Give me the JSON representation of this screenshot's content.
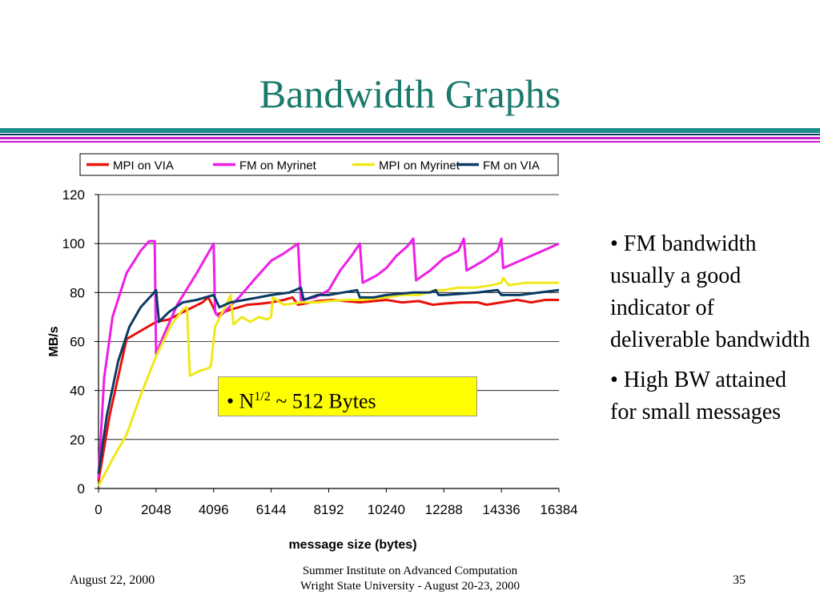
{
  "slide": {
    "title": "Bandwidth Graphs",
    "bullets": [
      "• FM bandwidth usually a good indicator of deliverable bandwidth",
      "• High BW attained for small messages"
    ],
    "callout": {
      "prefix": "• N",
      "sup": "1/2",
      "suffix": " ~ 512 Bytes"
    },
    "footer": {
      "date": "August 22, 2000",
      "center_line1": "Summer Institute on Advanced Computation",
      "center_line2": "Wright State University - August 20-23, 2000",
      "page": "35"
    },
    "colors": {
      "title": "#1a7a6c",
      "rule_teal": "#1a8a8a",
      "rule_navy": "#0a3a66",
      "rule_magenta": "#c81ec8",
      "callout_bg": "#ffff00"
    }
  },
  "chart_data": {
    "type": "line",
    "xlabel": "message size (bytes)",
    "ylabel": "MB/s",
    "xlim": [
      0,
      16384
    ],
    "ylim": [
      0,
      120
    ],
    "xticks": [
      0,
      2048,
      4096,
      6144,
      8192,
      10240,
      12288,
      14336,
      16384
    ],
    "yticks": [
      0,
      20,
      40,
      60,
      80,
      100,
      120
    ],
    "grid": true,
    "legend_position": "top",
    "series": [
      {
        "name": "MPI on VIA",
        "color": "#e8120c",
        "points": [
          [
            0,
            3
          ],
          [
            400,
            30
          ],
          [
            1000,
            61
          ],
          [
            2048,
            68
          ],
          [
            2500,
            69
          ],
          [
            3000,
            72
          ],
          [
            3700,
            76
          ],
          [
            3900,
            78
          ],
          [
            4000,
            76
          ],
          [
            4200,
            71
          ],
          [
            4700,
            73
          ],
          [
            5300,
            75
          ],
          [
            5800,
            75.5
          ],
          [
            6144,
            76
          ],
          [
            6600,
            77
          ],
          [
            6900,
            78
          ],
          [
            7100,
            75
          ],
          [
            7800,
            76.5
          ],
          [
            8300,
            77
          ],
          [
            8800,
            76.5
          ],
          [
            9300,
            76
          ],
          [
            9800,
            76.5
          ],
          [
            10240,
            77
          ],
          [
            10800,
            76
          ],
          [
            11400,
            76.5
          ],
          [
            11900,
            75
          ],
          [
            12288,
            75.5
          ],
          [
            12900,
            76
          ],
          [
            13500,
            76
          ],
          [
            13800,
            75
          ],
          [
            14336,
            76
          ],
          [
            14900,
            77
          ],
          [
            15400,
            76
          ],
          [
            15900,
            77
          ],
          [
            16384,
            77
          ]
        ]
      },
      {
        "name": "FM  on Myrinet",
        "color": "#ee1ee6",
        "points": [
          [
            0,
            4
          ],
          [
            200,
            45
          ],
          [
            500,
            70
          ],
          [
            1000,
            88
          ],
          [
            1500,
            97
          ],
          [
            1800,
            101
          ],
          [
            2000,
            101
          ],
          [
            2048,
            55
          ],
          [
            2300,
            62
          ],
          [
            2800,
            75
          ],
          [
            3500,
            88
          ],
          [
            4096,
            100
          ],
          [
            4150,
            72
          ],
          [
            4300,
            70
          ],
          [
            5000,
            78
          ],
          [
            5600,
            86
          ],
          [
            6144,
            93
          ],
          [
            6600,
            96
          ],
          [
            7100,
            100
          ],
          [
            7200,
            77
          ],
          [
            7700,
            78
          ],
          [
            8192,
            81
          ],
          [
            8600,
            89
          ],
          [
            9000,
            95
          ],
          [
            9300,
            100
          ],
          [
            9400,
            84
          ],
          [
            9900,
            87
          ],
          [
            10240,
            90
          ],
          [
            10600,
            95
          ],
          [
            11000,
            99
          ],
          [
            11200,
            102
          ],
          [
            11300,
            85
          ],
          [
            11800,
            89
          ],
          [
            12288,
            94
          ],
          [
            12800,
            97
          ],
          [
            13000,
            102
          ],
          [
            13100,
            89
          ],
          [
            13700,
            93
          ],
          [
            14200,
            97
          ],
          [
            14336,
            102
          ],
          [
            14400,
            90
          ],
          [
            15000,
            93
          ],
          [
            15600,
            96
          ],
          [
            16384,
            100
          ]
        ]
      },
      {
        "name": "MPI on Myrinet",
        "color": "#f0e818",
        "points": [
          [
            0,
            1
          ],
          [
            500,
            12
          ],
          [
            1000,
            22
          ],
          [
            1500,
            38
          ],
          [
            2048,
            54
          ],
          [
            2600,
            67
          ],
          [
            3000,
            73
          ],
          [
            3150,
            74
          ],
          [
            3250,
            46
          ],
          [
            3600,
            48
          ],
          [
            3900,
            49
          ],
          [
            4000,
            50
          ],
          [
            4150,
            66
          ],
          [
            4500,
            74
          ],
          [
            4700,
            79
          ],
          [
            4800,
            67
          ],
          [
            5100,
            70
          ],
          [
            5400,
            68
          ],
          [
            5700,
            70
          ],
          [
            6000,
            69
          ],
          [
            6144,
            70
          ],
          [
            6200,
            78
          ],
          [
            6600,
            75
          ],
          [
            7200,
            76
          ],
          [
            7800,
            76
          ],
          [
            8192,
            76.5
          ],
          [
            8800,
            77
          ],
          [
            9400,
            77
          ],
          [
            10240,
            78
          ],
          [
            10800,
            79
          ],
          [
            11400,
            79
          ],
          [
            12000,
            81
          ],
          [
            12288,
            81
          ],
          [
            12800,
            82
          ],
          [
            13400,
            82
          ],
          [
            14000,
            83
          ],
          [
            14336,
            84
          ],
          [
            14400,
            86
          ],
          [
            14600,
            83
          ],
          [
            15200,
            84
          ],
          [
            15800,
            84
          ],
          [
            16384,
            84
          ]
        ]
      },
      {
        "name": "FM on VIA",
        "color": "#0a3a66",
        "points": [
          [
            0,
            6
          ],
          [
            300,
            30
          ],
          [
            700,
            52
          ],
          [
            1100,
            66
          ],
          [
            1500,
            74
          ],
          [
            1900,
            79
          ],
          [
            2048,
            81
          ],
          [
            2150,
            68
          ],
          [
            2500,
            72
          ],
          [
            3000,
            76
          ],
          [
            3500,
            77
          ],
          [
            4096,
            79
          ],
          [
            4300,
            74
          ],
          [
            4700,
            76
          ],
          [
            5200,
            77
          ],
          [
            5700,
            78
          ],
          [
            6144,
            79
          ],
          [
            6800,
            80
          ],
          [
            7200,
            82
          ],
          [
            7300,
            77
          ],
          [
            7800,
            79
          ],
          [
            8192,
            79
          ],
          [
            8700,
            80
          ],
          [
            9200,
            81
          ],
          [
            9300,
            78
          ],
          [
            9800,
            78
          ],
          [
            10240,
            79
          ],
          [
            10700,
            79.5
          ],
          [
            11200,
            80
          ],
          [
            11800,
            80
          ],
          [
            12000,
            81
          ],
          [
            12100,
            79
          ],
          [
            12288,
            79
          ],
          [
            12900,
            79.5
          ],
          [
            13500,
            80
          ],
          [
            14200,
            81
          ],
          [
            14336,
            79
          ],
          [
            15000,
            79
          ],
          [
            15700,
            80
          ],
          [
            16384,
            81
          ]
        ]
      }
    ]
  }
}
